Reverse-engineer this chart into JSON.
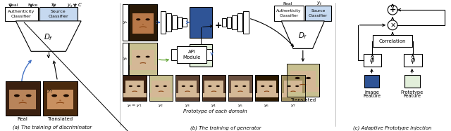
{
  "title_a": "(a) The training of discriminator",
  "title_b": "(b) The training of generator",
  "title_c": "(c) Adaptive Prototype Injection",
  "fig_width": 6.4,
  "fig_height": 1.87,
  "bg_color": "#ffffff",
  "box_blue_light": "#c6d9f0",
  "box_blue_dark": "#2f5496",
  "box_green_light": "#e2efda",
  "arrow_blue": "#4472c4",
  "arrow_green": "#70ad47",
  "face_skin": "#c8956c",
  "face_hair": "#3a2010",
  "face_bg": "#e8c8a0"
}
